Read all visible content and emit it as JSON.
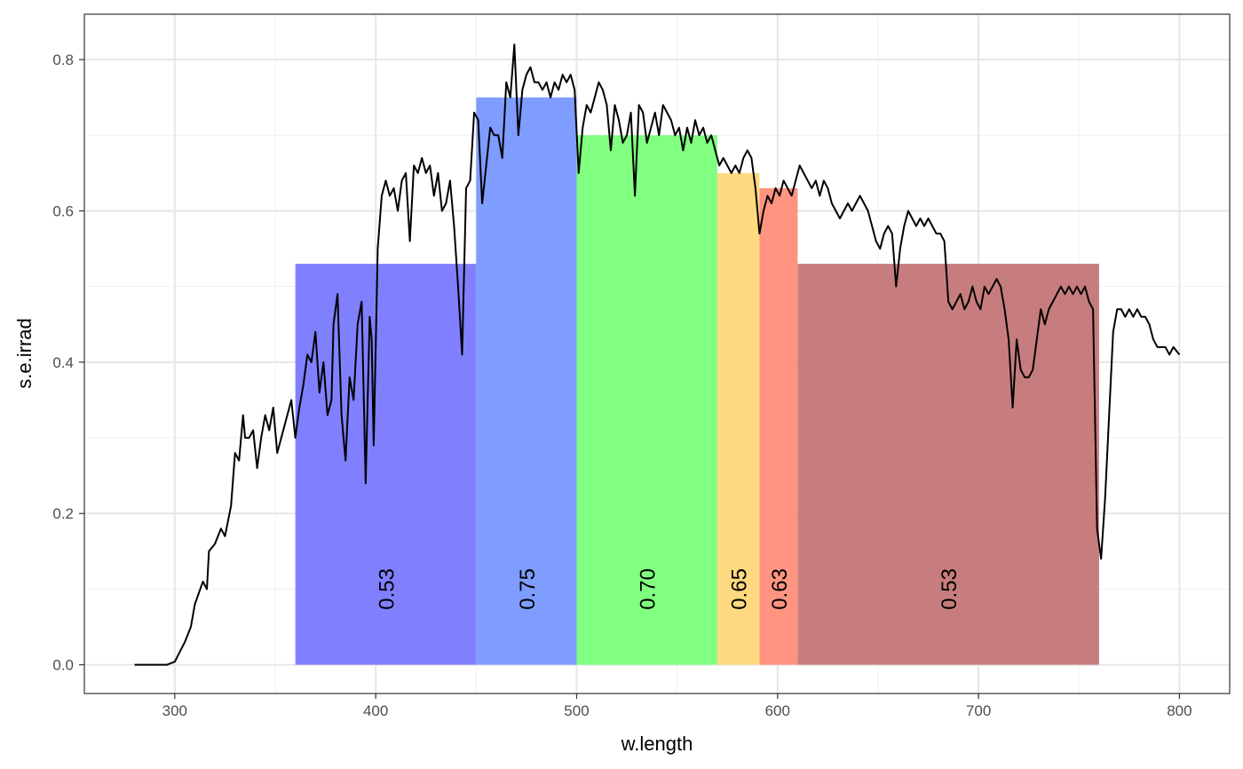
{
  "chart_data": {
    "type": "line",
    "title": "",
    "xlabel": "w.length",
    "ylabel": "s.e.irrad",
    "xlim": [
      255,
      825
    ],
    "ylim": [
      -0.038,
      0.86
    ],
    "x_ticks": [
      300,
      400,
      500,
      600,
      700,
      800
    ],
    "y_ticks": [
      0.0,
      0.2,
      0.4,
      0.6,
      0.8
    ],
    "x_tick_labels": [
      "300",
      "400",
      "500",
      "600",
      "700",
      "800"
    ],
    "y_tick_labels": [
      "0.0",
      "0.2",
      "0.4",
      "0.6",
      "0.8"
    ],
    "grid": true,
    "legend": "none",
    "bands": [
      {
        "x_start": 360,
        "x_end": 450,
        "value": 0.53,
        "label": "0.53",
        "color": "#8080ff"
      },
      {
        "x_start": 450,
        "x_end": 500,
        "value": 0.75,
        "label": "0.75",
        "color": "#7f9cff"
      },
      {
        "x_start": 500,
        "x_end": 570,
        "value": 0.7,
        "label": "0.70",
        "color": "#80ff80"
      },
      {
        "x_start": 570,
        "x_end": 591,
        "value": 0.65,
        "label": "0.65",
        "color": "#ffd97f"
      },
      {
        "x_start": 591,
        "x_end": 610,
        "value": 0.63,
        "label": "0.63",
        "color": "#ff9580"
      },
      {
        "x_start": 610,
        "x_end": 760,
        "value": 0.53,
        "label": "0.53",
        "color": "#c77d7d"
      }
    ],
    "series": [
      {
        "color": "#000000",
        "points": [
          [
            280,
            0.0
          ],
          [
            290,
            0.0
          ],
          [
            296,
            0.0
          ],
          [
            300,
            0.004
          ],
          [
            305,
            0.03
          ],
          [
            308,
            0.05
          ],
          [
            310,
            0.08
          ],
          [
            314,
            0.11
          ],
          [
            316,
            0.1
          ],
          [
            317,
            0.15
          ],
          [
            320,
            0.16
          ],
          [
            323,
            0.18
          ],
          [
            325,
            0.17
          ],
          [
            328,
            0.21
          ],
          [
            330,
            0.28
          ],
          [
            332,
            0.27
          ],
          [
            334,
            0.33
          ],
          [
            335,
            0.3
          ],
          [
            337,
            0.3
          ],
          [
            339,
            0.31
          ],
          [
            341,
            0.26
          ],
          [
            343,
            0.3
          ],
          [
            345,
            0.33
          ],
          [
            347,
            0.31
          ],
          [
            349,
            0.34
          ],
          [
            351,
            0.28
          ],
          [
            353,
            0.3
          ],
          [
            356,
            0.33
          ],
          [
            358,
            0.35
          ],
          [
            360,
            0.3
          ],
          [
            362,
            0.34
          ],
          [
            364,
            0.37
          ],
          [
            366,
            0.41
          ],
          [
            368,
            0.4
          ],
          [
            370,
            0.44
          ],
          [
            372,
            0.36
          ],
          [
            374,
            0.4
          ],
          [
            376,
            0.33
          ],
          [
            378,
            0.35
          ],
          [
            379,
            0.45
          ],
          [
            381,
            0.49
          ],
          [
            383,
            0.33
          ],
          [
            385,
            0.27
          ],
          [
            387,
            0.38
          ],
          [
            389,
            0.35
          ],
          [
            391,
            0.45
          ],
          [
            393,
            0.48
          ],
          [
            395,
            0.24
          ],
          [
            397,
            0.46
          ],
          [
            398,
            0.43
          ],
          [
            399,
            0.29
          ],
          [
            401,
            0.55
          ],
          [
            403,
            0.62
          ],
          [
            405,
            0.64
          ],
          [
            407,
            0.62
          ],
          [
            409,
            0.63
          ],
          [
            411,
            0.6
          ],
          [
            413,
            0.64
          ],
          [
            415,
            0.65
          ],
          [
            417,
            0.56
          ],
          [
            419,
            0.66
          ],
          [
            421,
            0.65
          ],
          [
            423,
            0.67
          ],
          [
            425,
            0.65
          ],
          [
            427,
            0.66
          ],
          [
            429,
            0.62
          ],
          [
            431,
            0.65
          ],
          [
            433,
            0.6
          ],
          [
            435,
            0.61
          ],
          [
            437,
            0.64
          ],
          [
            439,
            0.58
          ],
          [
            441,
            0.5
          ],
          [
            443,
            0.41
          ],
          [
            445,
            0.63
          ],
          [
            447,
            0.64
          ],
          [
            449,
            0.73
          ],
          [
            451,
            0.72
          ],
          [
            453,
            0.61
          ],
          [
            455,
            0.66
          ],
          [
            457,
            0.71
          ],
          [
            459,
            0.7
          ],
          [
            461,
            0.7
          ],
          [
            463,
            0.67
          ],
          [
            465,
            0.77
          ],
          [
            467,
            0.75
          ],
          [
            469,
            0.82
          ],
          [
            471,
            0.7
          ],
          [
            473,
            0.76
          ],
          [
            475,
            0.78
          ],
          [
            477,
            0.79
          ],
          [
            479,
            0.77
          ],
          [
            481,
            0.77
          ],
          [
            483,
            0.76
          ],
          [
            485,
            0.77
          ],
          [
            487,
            0.75
          ],
          [
            489,
            0.77
          ],
          [
            491,
            0.76
          ],
          [
            493,
            0.78
          ],
          [
            495,
            0.77
          ],
          [
            497,
            0.78
          ],
          [
            499,
            0.76
          ],
          [
            501,
            0.65
          ],
          [
            503,
            0.71
          ],
          [
            505,
            0.74
          ],
          [
            507,
            0.73
          ],
          [
            509,
            0.75
          ],
          [
            511,
            0.77
          ],
          [
            513,
            0.76
          ],
          [
            515,
            0.74
          ],
          [
            517,
            0.68
          ],
          [
            519,
            0.74
          ],
          [
            521,
            0.72
          ],
          [
            523,
            0.69
          ],
          [
            525,
            0.7
          ],
          [
            527,
            0.73
          ],
          [
            529,
            0.62
          ],
          [
            531,
            0.74
          ],
          [
            533,
            0.73
          ],
          [
            535,
            0.69
          ],
          [
            537,
            0.71
          ],
          [
            539,
            0.73
          ],
          [
            541,
            0.7
          ],
          [
            543,
            0.74
          ],
          [
            545,
            0.73
          ],
          [
            547,
            0.72
          ],
          [
            549,
            0.7
          ],
          [
            551,
            0.71
          ],
          [
            553,
            0.68
          ],
          [
            555,
            0.71
          ],
          [
            557,
            0.69
          ],
          [
            559,
            0.72
          ],
          [
            561,
            0.7
          ],
          [
            563,
            0.71
          ],
          [
            565,
            0.69
          ],
          [
            567,
            0.7
          ],
          [
            569,
            0.68
          ],
          [
            571,
            0.66
          ],
          [
            573,
            0.67
          ],
          [
            575,
            0.66
          ],
          [
            577,
            0.65
          ],
          [
            579,
            0.66
          ],
          [
            581,
            0.65
          ],
          [
            583,
            0.67
          ],
          [
            585,
            0.68
          ],
          [
            587,
            0.67
          ],
          [
            589,
            0.63
          ],
          [
            591,
            0.57
          ],
          [
            593,
            0.6
          ],
          [
            595,
            0.62
          ],
          [
            597,
            0.61
          ],
          [
            599,
            0.63
          ],
          [
            601,
            0.62
          ],
          [
            603,
            0.64
          ],
          [
            605,
            0.63
          ],
          [
            607,
            0.62
          ],
          [
            609,
            0.64
          ],
          [
            611,
            0.66
          ],
          [
            613,
            0.65
          ],
          [
            615,
            0.64
          ],
          [
            617,
            0.63
          ],
          [
            619,
            0.64
          ],
          [
            621,
            0.62
          ],
          [
            623,
            0.64
          ],
          [
            625,
            0.63
          ],
          [
            627,
            0.61
          ],
          [
            629,
            0.6
          ],
          [
            631,
            0.59
          ],
          [
            633,
            0.6
          ],
          [
            635,
            0.61
          ],
          [
            637,
            0.6
          ],
          [
            639,
            0.61
          ],
          [
            641,
            0.62
          ],
          [
            643,
            0.61
          ],
          [
            645,
            0.6
          ],
          [
            647,
            0.58
          ],
          [
            649,
            0.56
          ],
          [
            651,
            0.55
          ],
          [
            653,
            0.57
          ],
          [
            655,
            0.58
          ],
          [
            657,
            0.57
          ],
          [
            659,
            0.5
          ],
          [
            661,
            0.55
          ],
          [
            663,
            0.58
          ],
          [
            665,
            0.6
          ],
          [
            667,
            0.59
          ],
          [
            669,
            0.58
          ],
          [
            671,
            0.59
          ],
          [
            673,
            0.58
          ],
          [
            675,
            0.59
          ],
          [
            677,
            0.58
          ],
          [
            679,
            0.57
          ],
          [
            681,
            0.57
          ],
          [
            683,
            0.56
          ],
          [
            685,
            0.48
          ],
          [
            687,
            0.47
          ],
          [
            689,
            0.48
          ],
          [
            691,
            0.49
          ],
          [
            693,
            0.47
          ],
          [
            695,
            0.48
          ],
          [
            697,
            0.5
          ],
          [
            699,
            0.48
          ],
          [
            701,
            0.47
          ],
          [
            703,
            0.5
          ],
          [
            705,
            0.49
          ],
          [
            707,
            0.5
          ],
          [
            709,
            0.51
          ],
          [
            711,
            0.5
          ],
          [
            713,
            0.47
          ],
          [
            715,
            0.43
          ],
          [
            717,
            0.34
          ],
          [
            719,
            0.43
          ],
          [
            721,
            0.39
          ],
          [
            723,
            0.38
          ],
          [
            725,
            0.38
          ],
          [
            727,
            0.39
          ],
          [
            729,
            0.43
          ],
          [
            731,
            0.47
          ],
          [
            733,
            0.45
          ],
          [
            735,
            0.47
          ],
          [
            737,
            0.48
          ],
          [
            739,
            0.49
          ],
          [
            741,
            0.5
          ],
          [
            743,
            0.49
          ],
          [
            745,
            0.5
          ],
          [
            747,
            0.49
          ],
          [
            749,
            0.5
          ],
          [
            751,
            0.49
          ],
          [
            753,
            0.5
          ],
          [
            755,
            0.48
          ],
          [
            757,
            0.47
          ],
          [
            759,
            0.18
          ],
          [
            761,
            0.14
          ],
          [
            763,
            0.22
          ],
          [
            765,
            0.33
          ],
          [
            767,
            0.44
          ],
          [
            769,
            0.47
          ],
          [
            771,
            0.47
          ],
          [
            773,
            0.46
          ],
          [
            775,
            0.47
          ],
          [
            777,
            0.46
          ],
          [
            779,
            0.47
          ],
          [
            781,
            0.46
          ],
          [
            783,
            0.46
          ],
          [
            785,
            0.45
          ],
          [
            787,
            0.43
          ],
          [
            789,
            0.42
          ],
          [
            791,
            0.42
          ],
          [
            793,
            0.42
          ],
          [
            795,
            0.41
          ],
          [
            797,
            0.42
          ],
          [
            800,
            0.41
          ]
        ]
      }
    ]
  }
}
